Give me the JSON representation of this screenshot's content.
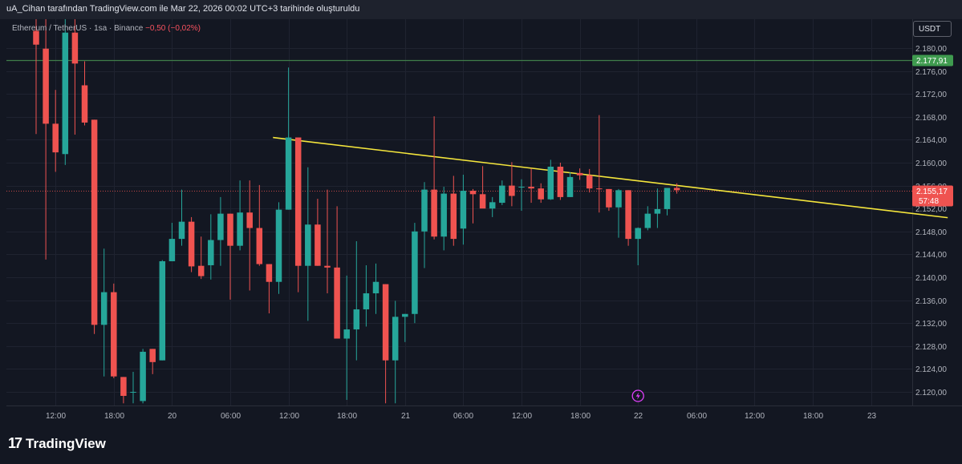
{
  "header": {
    "title": "uA_Cihan tarafından TradingView.com ile Mar 22, 2026 00:02 UTC+3 tarihinde oluşturuldu"
  },
  "symbol": {
    "pair": "Ethereum / TetherUS",
    "interval": "1sa",
    "exchange": "Binance",
    "sep": "·",
    "change": "−0,50 (−0,02%)"
  },
  "currency_button": "USDT",
  "footer": {
    "logo_mark": "17",
    "brand": "TradingView"
  },
  "colors": {
    "up": "#26a69a",
    "down": "#ef5350",
    "trendline": "#f5e63c",
    "hline": "#3f7d4a",
    "price_tag_current": "#ef5350",
    "price_tag_level": "#3f9b4f",
    "background": "#131722"
  },
  "icons": {
    "event": "lightning-icon"
  },
  "chart_data": {
    "type": "candlestick",
    "symbol": "ETHUSDT",
    "timeframe": "1sa",
    "ylim": [
      2118,
      2184
    ],
    "y_ticks": [
      2120,
      2124,
      2128,
      2132,
      2136,
      2140,
      2144,
      2148,
      2152,
      2156,
      2160,
      2164,
      2168,
      2172,
      2176,
      2180
    ],
    "y_tick_labels": [
      "2.120,00",
      "2.124,00",
      "2.128,00",
      "2.132,00",
      "2.136,00",
      "2.140,00",
      "2.144,00",
      "2.148,00",
      "2.152,00",
      "2.156,00",
      "2.160,00",
      "2.164,00",
      "2.168,00",
      "2.172,00",
      "2.176,00",
      "2.180,00"
    ],
    "x_ticks": [
      {
        "label": "12:00",
        "index": 2
      },
      {
        "label": "18:00",
        "index": 8
      },
      {
        "label": "20",
        "index": 14
      },
      {
        "label": "06:00",
        "index": 20
      },
      {
        "label": "12:00",
        "index": 26
      },
      {
        "label": "18:00",
        "index": 32
      },
      {
        "label": "21",
        "index": 38
      },
      {
        "label": "06:00",
        "index": 44
      },
      {
        "label": "12:00",
        "index": 50
      },
      {
        "label": "18:00",
        "index": 56
      },
      {
        "label": "22",
        "index": 62
      },
      {
        "label": "06:00",
        "index": 68
      },
      {
        "label": "12:00",
        "index": 74
      },
      {
        "label": "18:00",
        "index": 80
      },
      {
        "label": "23",
        "index": 86
      }
    ],
    "candles": [
      {
        "o": 2183.0,
        "h": 2186.0,
        "l": 2165.0,
        "c": 2180.6
      },
      {
        "o": 2179.9,
        "h": 2186.0,
        "l": 2143.1,
        "c": 2166.8
      },
      {
        "o": 2166.8,
        "h": 2172.7,
        "l": 2158.4,
        "c": 2161.8
      },
      {
        "o": 2161.5,
        "h": 2186.0,
        "l": 2159.6,
        "c": 2182.7
      },
      {
        "o": 2182.7,
        "h": 2186.0,
        "l": 2164.9,
        "c": 2177.3
      },
      {
        "o": 2173.5,
        "h": 2177.7,
        "l": 2166.5,
        "c": 2167.0
      },
      {
        "o": 2167.5,
        "h": 2167.5,
        "l": 2130.1,
        "c": 2131.7
      },
      {
        "o": 2131.7,
        "h": 2145.0,
        "l": 2122.7,
        "c": 2137.4
      },
      {
        "o": 2137.4,
        "h": 2138.9,
        "l": 2122.4,
        "c": 2122.7
      },
      {
        "o": 2122.6,
        "h": 2122.6,
        "l": 2118.0,
        "c": 2119.3
      },
      {
        "o": 2120.0,
        "h": 2123.5,
        "l": 2118.0,
        "c": 2120.0
      },
      {
        "o": 2118.4,
        "h": 2127.5,
        "l": 2118.0,
        "c": 2127.0
      },
      {
        "o": 2127.5,
        "h": 2127.5,
        "l": 2123.1,
        "c": 2125.2
      },
      {
        "o": 2125.5,
        "h": 2143.0,
        "l": 2125.5,
        "c": 2142.8
      },
      {
        "o": 2142.8,
        "h": 2149.5,
        "l": 2142.8,
        "c": 2146.7
      },
      {
        "o": 2146.7,
        "h": 2155.3,
        "l": 2145.5,
        "c": 2149.7
      },
      {
        "o": 2149.7,
        "h": 2150.5,
        "l": 2140.9,
        "c": 2141.9
      },
      {
        "o": 2142.0,
        "h": 2147.1,
        "l": 2139.7,
        "c": 2140.2
      },
      {
        "o": 2142.1,
        "h": 2151.0,
        "l": 2139.6,
        "c": 2146.5
      },
      {
        "o": 2146.5,
        "h": 2154.0,
        "l": 2142.0,
        "c": 2151.1
      },
      {
        "o": 2151.1,
        "h": 2151.1,
        "l": 2136.1,
        "c": 2145.5
      },
      {
        "o": 2145.5,
        "h": 2156.9,
        "l": 2144.7,
        "c": 2151.3
      },
      {
        "o": 2151.3,
        "h": 2156.9,
        "l": 2137.7,
        "c": 2148.6
      },
      {
        "o": 2148.6,
        "h": 2156.1,
        "l": 2142.0,
        "c": 2142.3
      },
      {
        "o": 2142.3,
        "h": 2142.3,
        "l": 2133.7,
        "c": 2139.2
      },
      {
        "o": 2139.2,
        "h": 2153.1,
        "l": 2137.1,
        "c": 2151.8
      },
      {
        "o": 2151.8,
        "h": 2176.6,
        "l": 2151.8,
        "c": 2164.4
      },
      {
        "o": 2164.4,
        "h": 2164.4,
        "l": 2137.4,
        "c": 2142.0
      },
      {
        "o": 2142.0,
        "h": 2159.2,
        "l": 2132.4,
        "c": 2149.2
      },
      {
        "o": 2149.2,
        "h": 2153.7,
        "l": 2142.0,
        "c": 2142.0
      },
      {
        "o": 2142.0,
        "h": 2155.3,
        "l": 2137.2,
        "c": 2141.7
      },
      {
        "o": 2141.7,
        "h": 2152.4,
        "l": 2129.3,
        "c": 2129.3
      },
      {
        "o": 2129.3,
        "h": 2140.3,
        "l": 2118.6,
        "c": 2130.9
      },
      {
        "o": 2130.9,
        "h": 2146.3,
        "l": 2125.5,
        "c": 2134.4
      },
      {
        "o": 2134.4,
        "h": 2142.1,
        "l": 2131.4,
        "c": 2137.2
      },
      {
        "o": 2137.2,
        "h": 2142.4,
        "l": 2133.6,
        "c": 2139.2
      },
      {
        "o": 2138.8,
        "h": 2138.8,
        "l": 2118.0,
        "c": 2125.5
      },
      {
        "o": 2125.5,
        "h": 2135.9,
        "l": 2118.0,
        "c": 2133.1
      },
      {
        "o": 2133.1,
        "h": 2133.6,
        "l": 2128.7,
        "c": 2133.6
      },
      {
        "o": 2133.6,
        "h": 2149.5,
        "l": 2132.0,
        "c": 2148.0
      },
      {
        "o": 2148.0,
        "h": 2156.6,
        "l": 2141.6,
        "c": 2155.3
      },
      {
        "o": 2155.3,
        "h": 2168.1,
        "l": 2146.6,
        "c": 2147.1
      },
      {
        "o": 2147.1,
        "h": 2155.8,
        "l": 2144.7,
        "c": 2154.6
      },
      {
        "o": 2154.6,
        "h": 2157.7,
        "l": 2145.5,
        "c": 2146.7
      },
      {
        "o": 2148.5,
        "h": 2157.9,
        "l": 2145.7,
        "c": 2155.1
      },
      {
        "o": 2155.1,
        "h": 2155.4,
        "l": 2149.4,
        "c": 2154.5
      },
      {
        "o": 2154.5,
        "h": 2159.4,
        "l": 2152.2,
        "c": 2152.0
      },
      {
        "o": 2152.0,
        "h": 2154.0,
        "l": 2150.5,
        "c": 2153.1
      },
      {
        "o": 2153.0,
        "h": 2156.9,
        "l": 2152.6,
        "c": 2156.0
      },
      {
        "o": 2156.0,
        "h": 2160.1,
        "l": 2152.4,
        "c": 2154.2
      },
      {
        "o": 2155.8,
        "h": 2157.1,
        "l": 2151.6,
        "c": 2155.8
      },
      {
        "o": 2155.8,
        "h": 2159.0,
        "l": 2153.0,
        "c": 2155.5
      },
      {
        "o": 2155.5,
        "h": 2156.4,
        "l": 2153.0,
        "c": 2153.6
      },
      {
        "o": 2153.6,
        "h": 2160.5,
        "l": 2153.5,
        "c": 2159.3
      },
      {
        "o": 2159.3,
        "h": 2160.0,
        "l": 2153.5,
        "c": 2154.0
      },
      {
        "o": 2154.0,
        "h": 2158.3,
        "l": 2154.0,
        "c": 2157.5
      },
      {
        "o": 2158.2,
        "h": 2159.0,
        "l": 2157.0,
        "c": 2157.8
      },
      {
        "o": 2157.8,
        "h": 2158.9,
        "l": 2154.8,
        "c": 2155.5
      },
      {
        "o": 2155.5,
        "h": 2168.3,
        "l": 2151.3,
        "c": 2155.4
      },
      {
        "o": 2155.4,
        "h": 2155.4,
        "l": 2151.6,
        "c": 2152.2
      },
      {
        "o": 2152.2,
        "h": 2155.4,
        "l": 2146.9,
        "c": 2155.2
      },
      {
        "o": 2155.2,
        "h": 2155.2,
        "l": 2145.5,
        "c": 2146.7
      },
      {
        "o": 2146.7,
        "h": 2148.7,
        "l": 2142.1,
        "c": 2148.6
      },
      {
        "o": 2148.6,
        "h": 2152.4,
        "l": 2148.2,
        "c": 2151.1
      },
      {
        "o": 2151.1,
        "h": 2155.5,
        "l": 2148.6,
        "c": 2151.9
      },
      {
        "o": 2151.9,
        "h": 2155.5,
        "l": 2150.8,
        "c": 2155.6
      },
      {
        "o": 2155.6,
        "h": 2156.4,
        "l": 2154.6,
        "c": 2155.2
      }
    ],
    "trendline": {
      "from": {
        "index": 24.4,
        "price": 2164.4
      },
      "to": {
        "index": 93.9,
        "price": 2150.4
      },
      "color": "#f5e63c"
    },
    "horizontal_line": {
      "price": 2177.91,
      "label": "2.177,91"
    },
    "current_price": {
      "price": 2155.17,
      "label": "2.155,17",
      "countdown": "57:48"
    },
    "grid": true
  }
}
